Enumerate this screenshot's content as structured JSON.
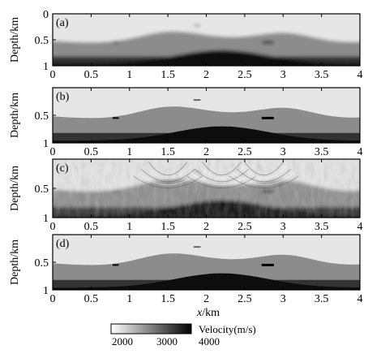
{
  "chart_data": [
    {
      "type": "heatmap",
      "panel_label": "(a)",
      "description_kind": "smoothed velocity model",
      "ylabel": "Depth/km",
      "x_ticks": [
        "0",
        "0.5",
        "1",
        "1.5",
        "2",
        "2.5",
        "3",
        "3.5",
        "4"
      ],
      "y_ticks": [
        "0",
        "0.5",
        "1"
      ],
      "xlim": [
        0,
        4
      ],
      "ylim": [
        0,
        1
      ]
    },
    {
      "type": "heatmap",
      "panel_label": "(b)",
      "description_kind": "model",
      "ylabel": "Depth/km",
      "x_ticks": [
        "0",
        "0.5",
        "1",
        "1.5",
        "2",
        "2.5",
        "3",
        "3.5",
        "4"
      ],
      "y_ticks": [
        "0.5",
        "1"
      ],
      "xlim": [
        0,
        4
      ],
      "ylim": [
        0,
        1
      ]
    },
    {
      "type": "heatmap",
      "panel_label": "(c)",
      "description_kind": "inversion with artifacts",
      "ylabel": "Depth/km",
      "x_ticks": [
        "0",
        "0.5",
        "1",
        "1.5",
        "2",
        "2.5",
        "3",
        "3.5",
        "4"
      ],
      "y_ticks": [
        "0.5",
        "1"
      ],
      "xlabel": "x/km",
      "xlim": [
        0,
        4
      ],
      "ylim": [
        0,
        1
      ]
    },
    {
      "type": "heatmap",
      "panel_label": "(d)",
      "description_kind": "true model",
      "ylabel": "Depth/km",
      "x_ticks": [
        "0",
        "0.5",
        "1",
        "1.5",
        "2",
        "2.5",
        "3",
        "3.5",
        "4"
      ],
      "y_ticks": [
        "0.5",
        "1"
      ],
      "xlabel": "x/km",
      "xlim": [
        0,
        4
      ],
      "ylim": [
        0,
        1
      ]
    }
  ],
  "colorbar": {
    "label": "Velocity(m/s)",
    "ticks": [
      "2000",
      "3000",
      "4000"
    ],
    "range": [
      2000,
      4000
    ],
    "colors": {
      "low": "#ffffff",
      "high": "#000000"
    }
  },
  "model": {
    "background_velocity": 2200,
    "layer_velocity": 2900,
    "deep_velocity": 3600,
    "dome_velocity": 3900,
    "lens_velocity": 4000,
    "shallow_lens_velocity": 3200,
    "lenses_x_km": [
      0.82,
      1.88,
      2.8
    ]
  }
}
